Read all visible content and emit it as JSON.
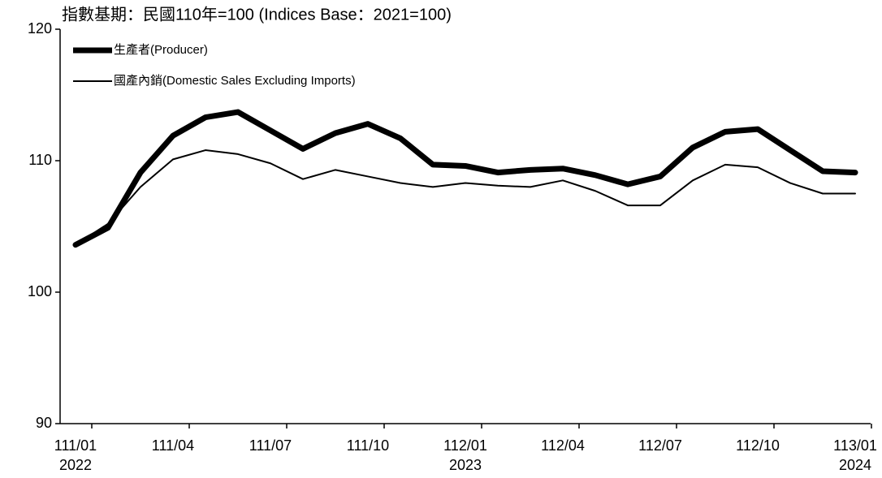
{
  "chart_data": {
    "type": "line",
    "title": "指數基期：民國110年=100 (Indices Base：2021=100)",
    "categories": [
      "111/01",
      null,
      null,
      "111/04",
      null,
      null,
      "111/07",
      null,
      null,
      "111/10",
      null,
      null,
      "112/01",
      null,
      null,
      "112/04",
      null,
      null,
      "112/07",
      null,
      null,
      "112/10",
      null,
      null,
      "113/01"
    ],
    "category_years": [
      "2022",
      null,
      null,
      null,
      null,
      null,
      null,
      null,
      null,
      null,
      null,
      null,
      "2023",
      null,
      null,
      null,
      null,
      null,
      null,
      null,
      null,
      null,
      null,
      null,
      "2024"
    ],
    "series": [
      {
        "name": "生產者(Producer)",
        "color": "#000000",
        "line_width": 7,
        "values": [
          103.6,
          104.9,
          109.1,
          111.9,
          113.3,
          113.7,
          112.3,
          110.9,
          112.1,
          112.8,
          111.7,
          109.7,
          109.6,
          109.1,
          109.3,
          109.4,
          108.9,
          108.2,
          108.8,
          111.0,
          112.2,
          112.4,
          110.8,
          109.2,
          109.1
        ]
      },
      {
        "name": "國產內銷(Domestic Sales Excluding Imports)",
        "color": "#000000",
        "line_width": 2,
        "values": [
          103.6,
          105.2,
          108.0,
          110.1,
          110.8,
          110.5,
          109.8,
          108.6,
          109.3,
          108.8,
          108.3,
          108.0,
          108.3,
          108.1,
          108.0,
          108.5,
          107.7,
          106.6,
          106.6,
          108.5,
          109.7,
          109.5,
          108.3,
          107.5,
          107.5
        ]
      }
    ],
    "ylim": [
      90,
      120
    ],
    "yticks": [
      90,
      100,
      110,
      120
    ],
    "grid": false,
    "legend": "top-left"
  }
}
